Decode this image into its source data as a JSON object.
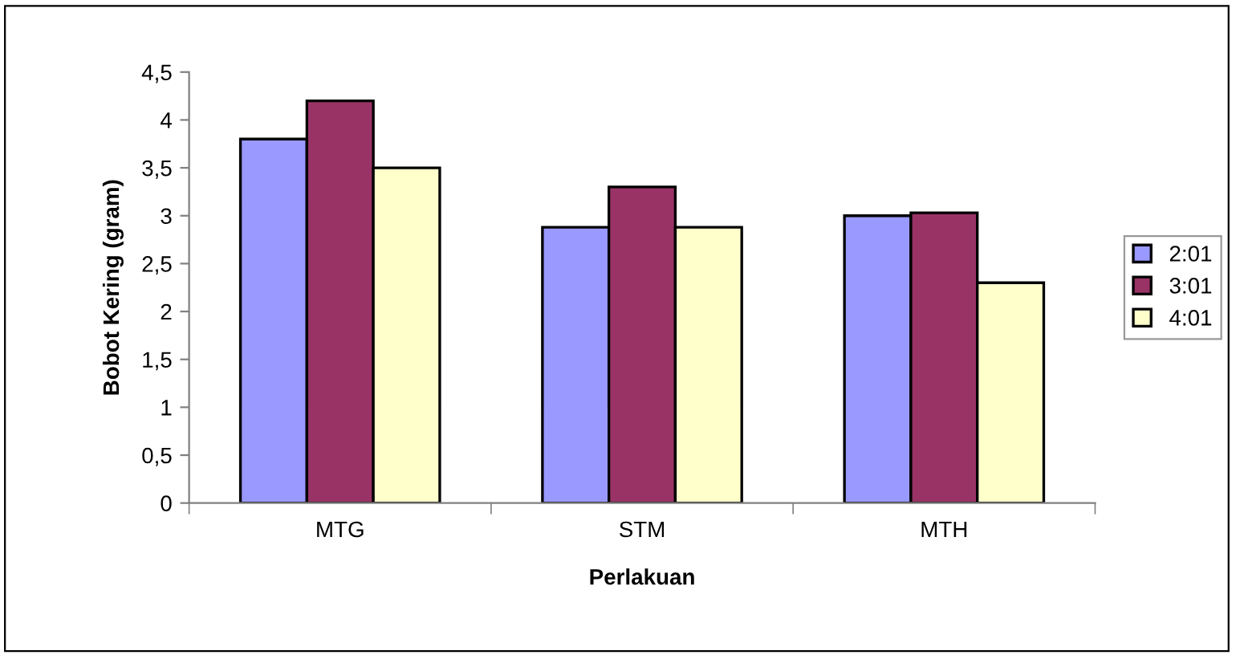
{
  "chart_data": {
    "type": "bar",
    "xlabel": "Perlakuan",
    "ylabel": "Bobot Kering (gram)",
    "categories": [
      "MTG",
      "STM",
      "MTH"
    ],
    "series": [
      {
        "name": "2:01",
        "color": "#9999ff",
        "values": [
          3.8,
          2.88,
          3.0
        ]
      },
      {
        "name": "3:01",
        "color": "#993366",
        "values": [
          4.2,
          3.3,
          3.03
        ]
      },
      {
        "name": "4:01",
        "color": "#ffffcc",
        "values": [
          3.5,
          2.88,
          2.3
        ]
      }
    ],
    "ylim": [
      0,
      4.5
    ],
    "yticks": [
      0,
      {
        "value": 0.5,
        "label": "0,5"
      },
      1,
      {
        "value": 1.5,
        "label": "1,5"
      },
      2,
      {
        "value": 2.5,
        "label": "2,5"
      },
      3,
      {
        "value": 3.5,
        "label": "3,5"
      },
      4,
      {
        "value": 4.5,
        "label": "4,5"
      }
    ],
    "grid": false,
    "legend": "right"
  }
}
